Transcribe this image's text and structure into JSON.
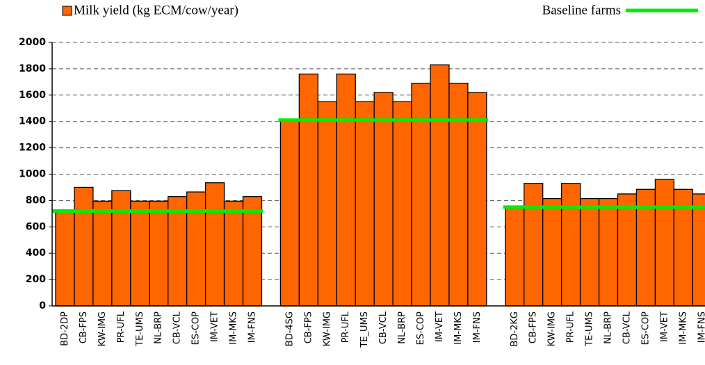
{
  "chart_data": {
    "type": "bar",
    "legend_label": "Milk yield (kg ECM/cow/year)",
    "color": "#ff6600",
    "categories": [
      "BD-2DP",
      "CB-FPS",
      "KW-IMG",
      "PR-UFL",
      "TE-UMS",
      "NL-BRP",
      "CB-VCL",
      "ES-COP",
      "IM-VET",
      "IM-MKS",
      "IM-FNS",
      null,
      "BD-4SG",
      "CB-FPS",
      "KW-IMG",
      "PR-UFL",
      "TE_UMS",
      "CB-VCL",
      "NL-BRP",
      "ES-COP",
      "IM-VET",
      "IM-MKS",
      "IM-FNS",
      null,
      "BD-2KG",
      "CB-FPS",
      "KW-IMG",
      "PR-UFL",
      "TE-UMS",
      "NL-BRP",
      "CB-VCL",
      "ES-COP",
      "IM-VET",
      "IM-MKS",
      "IM-FNS"
    ],
    "values": [
      720,
      900,
      795,
      875,
      795,
      795,
      830,
      865,
      935,
      795,
      830,
      null,
      1410,
      1760,
      1550,
      1760,
      1550,
      1620,
      1550,
      1690,
      1830,
      1690,
      1620,
      null,
      750,
      930,
      815,
      930,
      815,
      815,
      850,
      885,
      960,
      885,
      850
    ],
    "baseline": {
      "name": "Baseline farms",
      "color": "#00ee00",
      "values": [
        720,
        1410,
        750
      ]
    },
    "ylim": [
      0,
      2000
    ],
    "yticks": [
      0,
      200,
      400,
      600,
      800,
      1000,
      1200,
      1400,
      1600,
      1800,
      2000
    ],
    "grid": true
  }
}
